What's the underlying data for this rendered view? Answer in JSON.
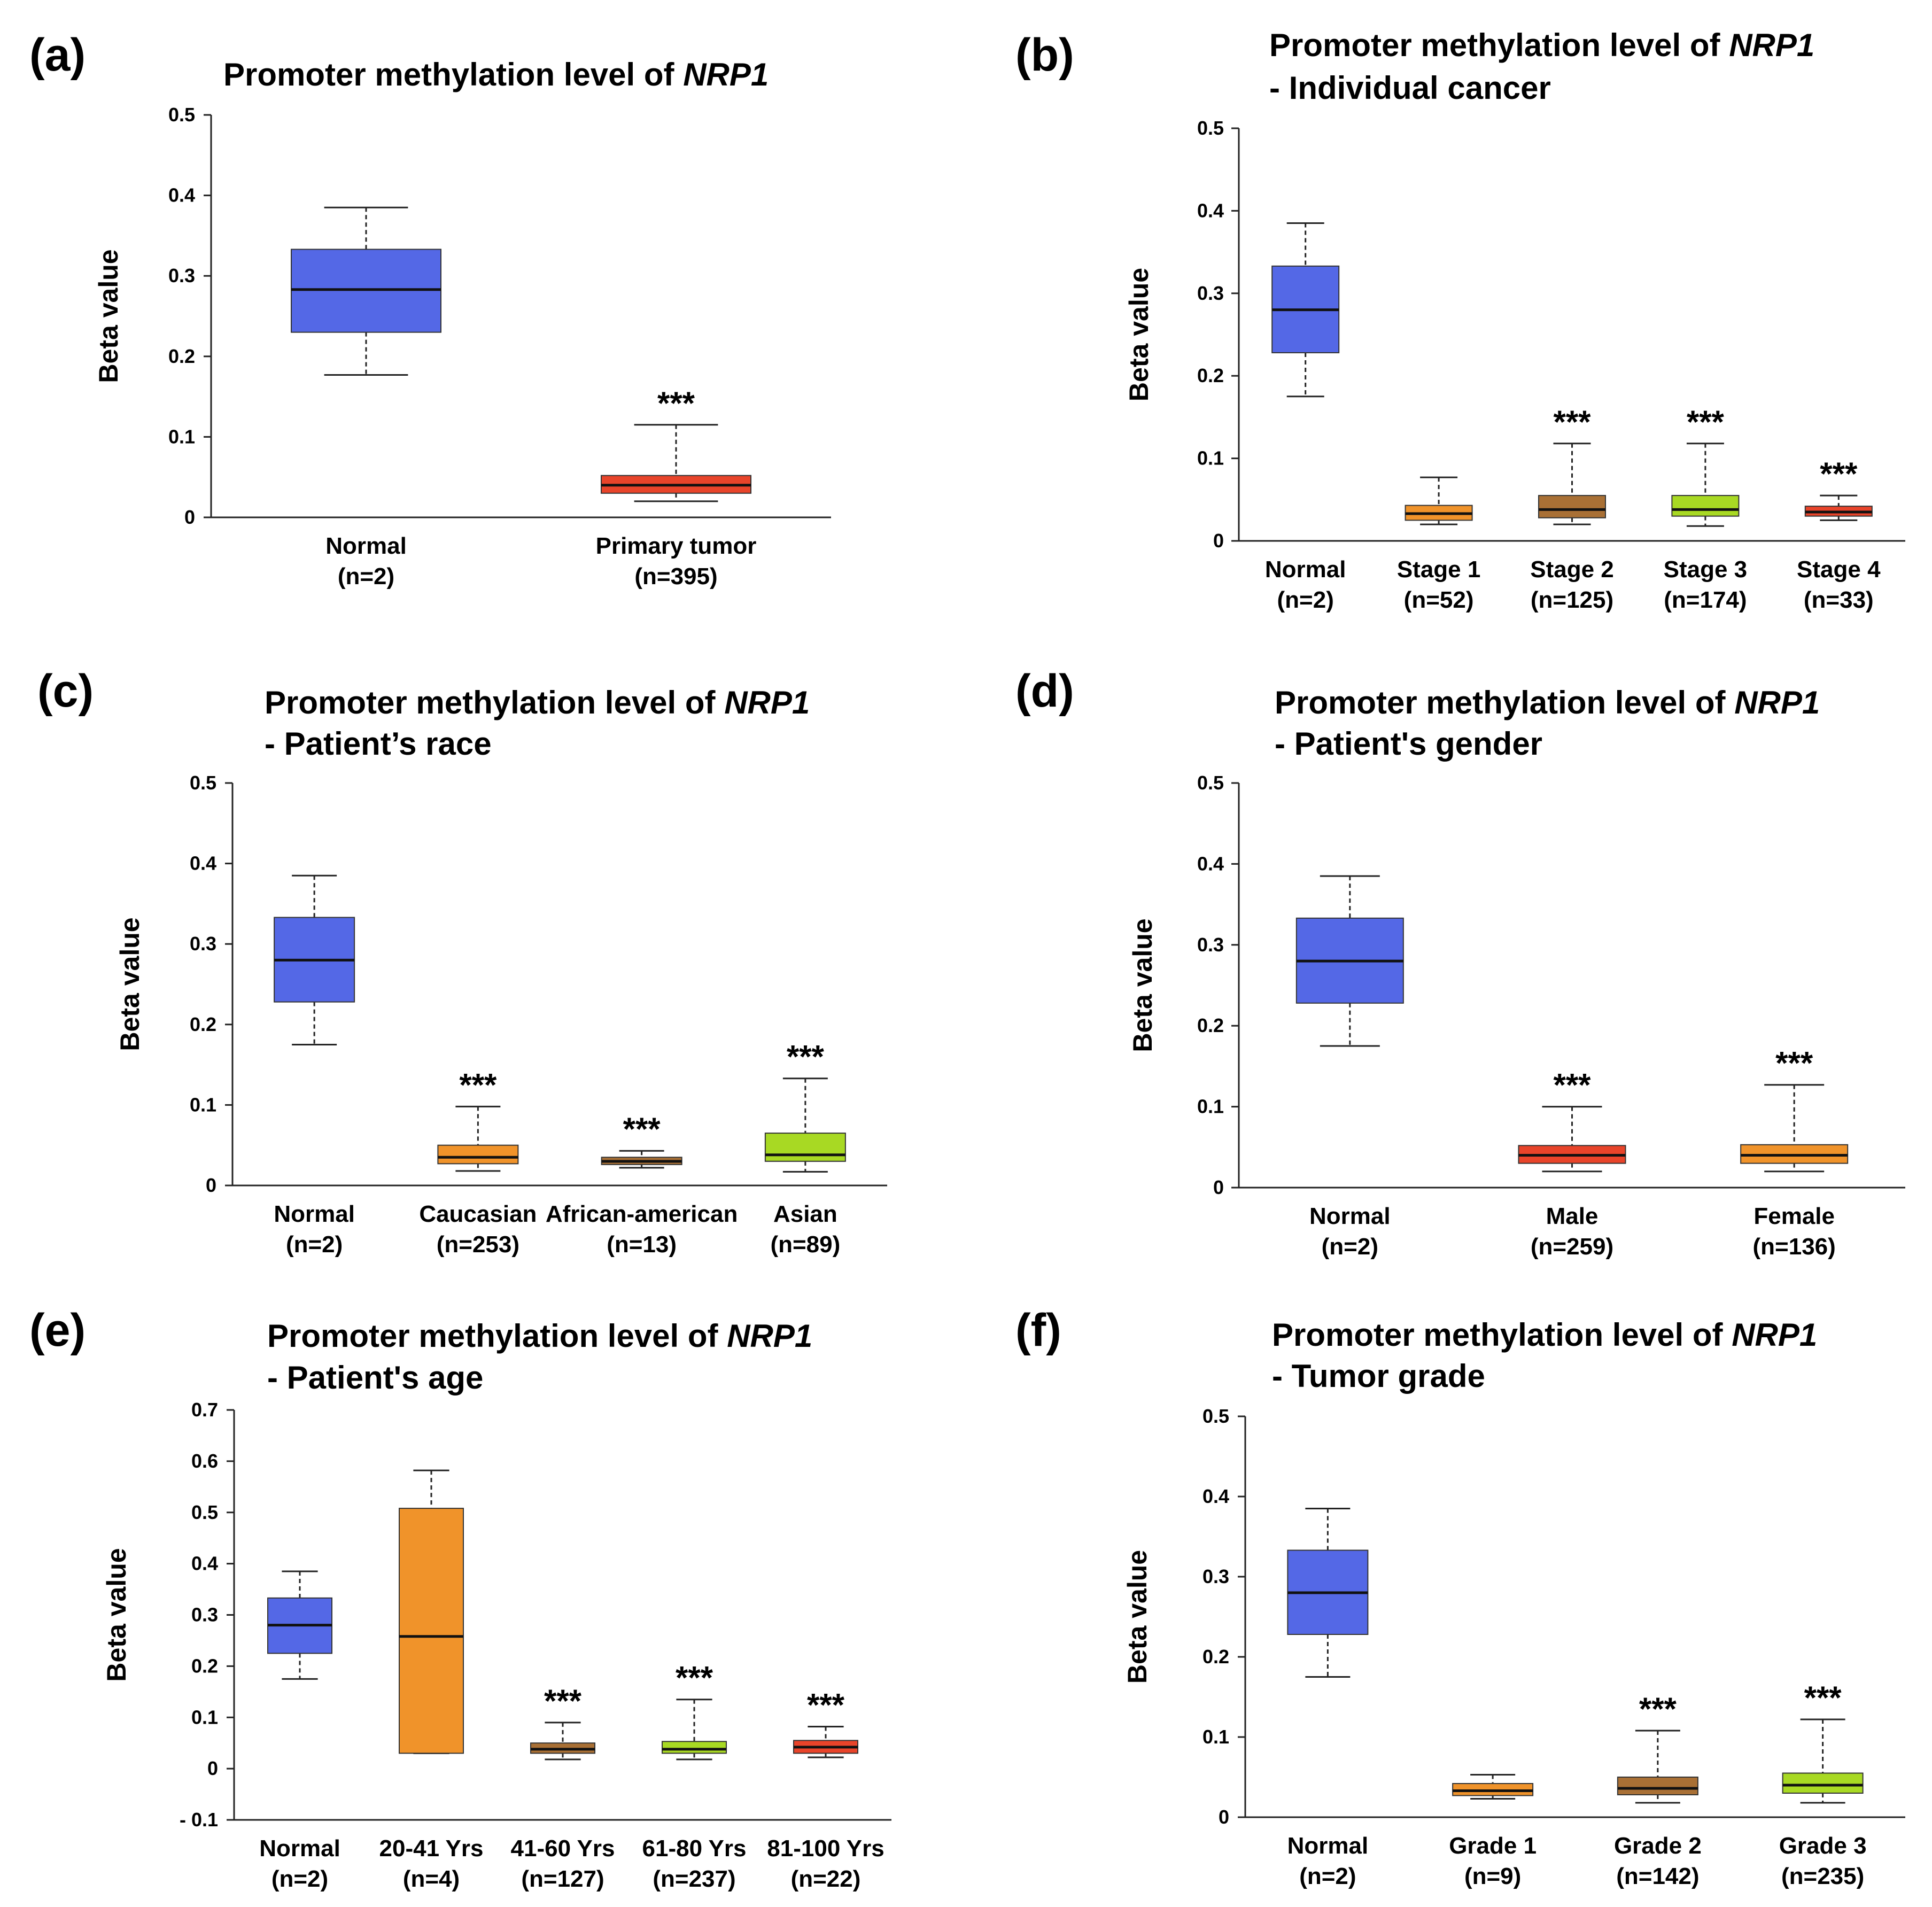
{
  "chart_data": [
    {
      "panel": "(a)",
      "type": "box",
      "title": "Promoter methylation level of",
      "title_gene": "NRP1",
      "subtitle": "",
      "ylabel": "Beta value",
      "ylim": [
        0,
        0.5
      ],
      "yticks": [
        "0",
        "0.1",
        "0.2",
        "0.3",
        "0.4",
        "0.5"
      ],
      "grid": false,
      "categories": [
        {
          "name": "Normal",
          "n": "(n=2)",
          "color": "#5468e6",
          "min": 0.177,
          "q1": 0.23,
          "median": 0.283,
          "q3": 0.333,
          "max": 0.385,
          "sig": ""
        },
        {
          "name": "Primary tumor",
          "n": "(n=395)",
          "color": "#e8442a",
          "min": 0.02,
          "q1": 0.03,
          "median": 0.04,
          "q3": 0.052,
          "max": 0.115,
          "sig": "***"
        }
      ]
    },
    {
      "panel": "(b)",
      "type": "box",
      "title": "Promoter methylation level of",
      "title_gene": "NRP1",
      "subtitle": "- Individual cancer",
      "ylabel": "Beta value",
      "ylim": [
        0,
        0.5
      ],
      "yticks": [
        "0",
        "0.1",
        "0.2",
        "0.3",
        "0.4",
        "0.5"
      ],
      "grid": false,
      "categories": [
        {
          "name": "Normal",
          "n": "(n=2)",
          "color": "#5468e6",
          "min": 0.175,
          "q1": 0.228,
          "median": 0.28,
          "q3": 0.333,
          "max": 0.385,
          "sig": ""
        },
        {
          "name": "Stage 1",
          "n": "(n=52)",
          "color": "#f0932a",
          "min": 0.02,
          "q1": 0.025,
          "median": 0.033,
          "q3": 0.043,
          "max": 0.077,
          "sig": ""
        },
        {
          "name": "Stage 2",
          "n": "(n=125)",
          "color": "#a97035",
          "min": 0.02,
          "q1": 0.028,
          "median": 0.038,
          "q3": 0.055,
          "max": 0.118,
          "sig": "***"
        },
        {
          "name": "Stage 3",
          "n": "(n=174)",
          "color": "#a8d923",
          "min": 0.018,
          "q1": 0.03,
          "median": 0.038,
          "q3": 0.055,
          "max": 0.118,
          "sig": "***"
        },
        {
          "name": "Stage 4",
          "n": "(n=33)",
          "color": "#e8442a",
          "min": 0.025,
          "q1": 0.03,
          "median": 0.035,
          "q3": 0.042,
          "max": 0.055,
          "sig": "***"
        }
      ]
    },
    {
      "panel": "(c)",
      "type": "box",
      "title": "Promoter methylation level of",
      "title_gene": "NRP1",
      "subtitle": "- Patient’s race",
      "ylabel": "Beta value",
      "ylim": [
        0,
        0.5
      ],
      "yticks": [
        "0",
        "0.1",
        "0.2",
        "0.3",
        "0.4",
        "0.5"
      ],
      "grid": false,
      "categories": [
        {
          "name": "Normal",
          "n": "(n=2)",
          "color": "#5468e6",
          "min": 0.175,
          "q1": 0.228,
          "median": 0.28,
          "q3": 0.333,
          "max": 0.385,
          "sig": ""
        },
        {
          "name": "Caucasian",
          "n": "(n=253)",
          "color": "#f0932a",
          "min": 0.018,
          "q1": 0.027,
          "median": 0.035,
          "q3": 0.05,
          "max": 0.098,
          "sig": "***"
        },
        {
          "name": "African-american",
          "n": "(n=13)",
          "color": "#a97035",
          "min": 0.022,
          "q1": 0.026,
          "median": 0.03,
          "q3": 0.035,
          "max": 0.043,
          "sig": "***"
        },
        {
          "name": "Asian",
          "n": "(n=89)",
          "color": "#a8d923",
          "min": 0.017,
          "q1": 0.03,
          "median": 0.038,
          "q3": 0.065,
          "max": 0.133,
          "sig": "***"
        }
      ]
    },
    {
      "panel": "(d)",
      "type": "box",
      "title": "Promoter methylation level of",
      "title_gene": "NRP1",
      "subtitle": "- Patient's gender",
      "ylabel": "Beta value",
      "ylim": [
        0,
        0.5
      ],
      "yticks": [
        "0",
        "0.1",
        "0.2",
        "0.3",
        "0.4",
        "0.5"
      ],
      "grid": false,
      "categories": [
        {
          "name": "Normal",
          "n": "(n=2)",
          "color": "#5468e6",
          "min": 0.175,
          "q1": 0.228,
          "median": 0.28,
          "q3": 0.333,
          "max": 0.385,
          "sig": ""
        },
        {
          "name": "Male",
          "n": "(n=259)",
          "color": "#e8442a",
          "min": 0.02,
          "q1": 0.03,
          "median": 0.04,
          "q3": 0.052,
          "max": 0.1,
          "sig": "***"
        },
        {
          "name": "Female",
          "n": "(n=136)",
          "color": "#f0932a",
          "min": 0.02,
          "q1": 0.03,
          "median": 0.04,
          "q3": 0.053,
          "max": 0.127,
          "sig": "***"
        }
      ]
    },
    {
      "panel": "(e)",
      "type": "box",
      "title": "Promoter methylation level of",
      "title_gene": "NRP1",
      "subtitle": "- Patient's age",
      "ylabel": "Beta value",
      "ylim": [
        -0.1,
        0.7
      ],
      "yticks": [
        "- 0.1",
        "0",
        "0.1",
        "0.2",
        "0.3",
        "0.4",
        "0.5",
        "0.6",
        "0.7"
      ],
      "grid": false,
      "categories": [
        {
          "name": "Normal",
          "n": "(n=2)",
          "color": "#5468e6",
          "min": 0.175,
          "q1": 0.225,
          "median": 0.28,
          "q3": 0.333,
          "max": 0.385,
          "sig": ""
        },
        {
          "name": "20-41 Yrs",
          "n": "(n=4)",
          "color": "#f0932a",
          "min": 0.03,
          "q1": 0.03,
          "median": 0.258,
          "q3": 0.508,
          "max": 0.582,
          "sig": ""
        },
        {
          "name": "41-60 Yrs",
          "n": "(n=127)",
          "color": "#a97035",
          "min": 0.018,
          "q1": 0.03,
          "median": 0.038,
          "q3": 0.05,
          "max": 0.09,
          "sig": "***"
        },
        {
          "name": "61-80 Yrs",
          "n": "(n=237)",
          "color": "#a8d923",
          "min": 0.018,
          "q1": 0.03,
          "median": 0.038,
          "q3": 0.053,
          "max": 0.135,
          "sig": "***"
        },
        {
          "name": "81-100 Yrs",
          "n": "(n=22)",
          "color": "#e8442a",
          "min": 0.022,
          "q1": 0.03,
          "median": 0.042,
          "q3": 0.055,
          "max": 0.082,
          "sig": "***"
        }
      ]
    },
    {
      "panel": "(f)",
      "type": "box",
      "title": "Promoter methylation level of",
      "title_gene": "NRP1",
      "subtitle": "- Tumor grade",
      "ylabel": "Beta value",
      "ylim": [
        0,
        0.5
      ],
      "yticks": [
        "0",
        "0.1",
        "0.2",
        "0.3",
        "0.4",
        "0.5"
      ],
      "grid": false,
      "categories": [
        {
          "name": "Normal",
          "n": "(n=2)",
          "color": "#5468e6",
          "min": 0.175,
          "q1": 0.228,
          "median": 0.28,
          "q3": 0.333,
          "max": 0.385,
          "sig": ""
        },
        {
          "name": "Grade 1",
          "n": "(n=9)",
          "color": "#f0932a",
          "min": 0.023,
          "q1": 0.027,
          "median": 0.033,
          "q3": 0.042,
          "max": 0.053,
          "sig": ""
        },
        {
          "name": "Grade 2",
          "n": "(n=142)",
          "color": "#a97035",
          "min": 0.018,
          "q1": 0.028,
          "median": 0.036,
          "q3": 0.05,
          "max": 0.108,
          "sig": "***"
        },
        {
          "name": "Grade 3",
          "n": "(n=235)",
          "color": "#a8d923",
          "min": 0.018,
          "q1": 0.03,
          "median": 0.04,
          "q3": 0.055,
          "max": 0.122,
          "sig": "***"
        }
      ]
    }
  ]
}
